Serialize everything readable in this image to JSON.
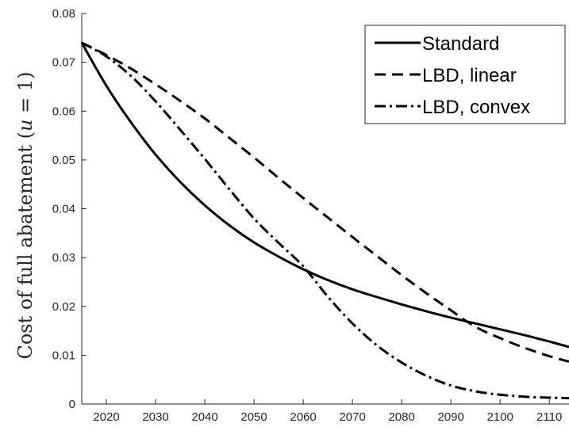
{
  "chart_data": {
    "type": "line",
    "title": "",
    "xlabel": "",
    "ylabel": "Cost of full abatement (u = 1)",
    "xlim": [
      2015,
      2114
    ],
    "ylim": [
      0,
      0.08
    ],
    "xticks": [
      2020,
      2030,
      2040,
      2050,
      2060,
      2070,
      2080,
      2090,
      2100,
      2110
    ],
    "yticks": [
      0,
      0.01,
      0.02,
      0.03,
      0.04,
      0.05,
      0.06,
      0.07,
      0.08
    ],
    "ytick_labels": [
      "0",
      "0.01",
      "0.02",
      "0.03",
      "0.04",
      "0.05",
      "0.06",
      "0.07",
      "0.08"
    ],
    "grid": false,
    "legend_position": "top-right",
    "x": [
      2015,
      2020,
      2025,
      2030,
      2035,
      2040,
      2045,
      2050,
      2055,
      2060,
      2065,
      2070,
      2075,
      2080,
      2085,
      2090,
      2095,
      2100,
      2105,
      2110,
      2114
    ],
    "series": [
      {
        "name": "Standard",
        "style": "solid",
        "values": [
          0.074,
          0.0652,
          0.0577,
          0.0511,
          0.0455,
          0.0407,
          0.0366,
          0.0331,
          0.0302,
          0.0276,
          0.0254,
          0.0235,
          0.0219,
          0.0204,
          0.019,
          0.0177,
          0.0165,
          0.0153,
          0.0141,
          0.0128,
          0.0117
        ]
      },
      {
        "name": "LBD, linear",
        "style": "dashed",
        "values": [
          0.074,
          0.0715,
          0.0687,
          0.0655,
          0.0621,
          0.0585,
          0.0545,
          0.0505,
          0.0463,
          0.0422,
          0.0382,
          0.0342,
          0.0303,
          0.0264,
          0.0227,
          0.0192,
          0.0158,
          0.0135,
          0.0115,
          0.0098,
          0.0087
        ]
      },
      {
        "name": "LBD, convex",
        "style": "dashdot",
        "values": [
          0.074,
          0.0712,
          0.0672,
          0.062,
          0.0562,
          0.0502,
          0.044,
          0.038,
          0.033,
          0.0282,
          0.022,
          0.0165,
          0.012,
          0.0085,
          0.0058,
          0.0038,
          0.0026,
          0.0019,
          0.0015,
          0.0013,
          0.0012
        ]
      }
    ]
  }
}
